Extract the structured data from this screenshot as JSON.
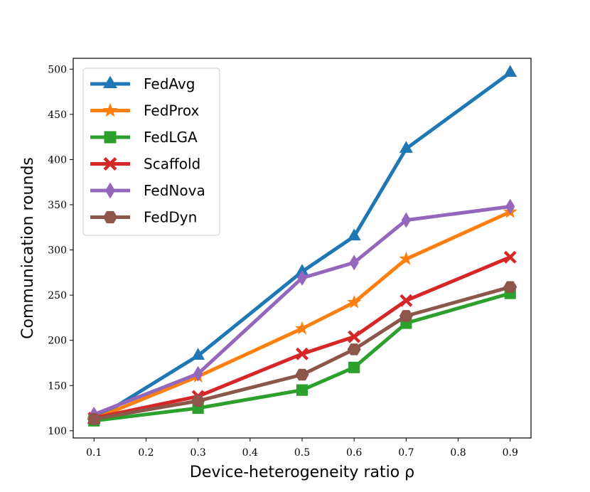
{
  "chart_data": {
    "type": "line",
    "title": "",
    "xlabel": "Device-heterogeneity ratio ρ",
    "ylabel": "Communication rounds",
    "x": [
      0.1,
      0.3,
      0.5,
      0.6,
      0.7,
      0.9
    ],
    "xlim": [
      0.06,
      0.94
    ],
    "ylim": [
      92,
      512
    ],
    "xticks": [
      0.1,
      0.2,
      0.3,
      0.4,
      0.5,
      0.6,
      0.7,
      0.8,
      0.9
    ],
    "xtick_labels": [
      "0.1",
      "0.2",
      "0.3",
      "0.4",
      "0.5",
      "0.6",
      "0.7",
      "0.8",
      "0.9"
    ],
    "yticks": [
      100,
      150,
      200,
      250,
      300,
      350,
      400,
      450,
      500
    ],
    "ytick_labels": [
      "100",
      "150",
      "200",
      "250",
      "300",
      "350",
      "400",
      "450",
      "500"
    ],
    "grid": false,
    "legend_position": "upper-left",
    "series": [
      {
        "name": "FedAvg",
        "color": "#1f77b4",
        "marker": "triangle",
        "values": [
          112,
          183,
          276,
          315,
          412,
          496
        ]
      },
      {
        "name": "FedProx",
        "color": "#ff7f0e",
        "marker": "star",
        "values": [
          113,
          160,
          213,
          242,
          290,
          342
        ]
      },
      {
        "name": "FedLGA",
        "color": "#2ca02c",
        "marker": "square",
        "values": [
          111,
          125,
          145,
          170,
          219,
          252
        ]
      },
      {
        "name": "Scaffold",
        "color": "#d62728",
        "marker": "x",
        "values": [
          114,
          138,
          185,
          204,
          244,
          292
        ]
      },
      {
        "name": "FedNova",
        "color": "#9467bd",
        "marker": "diamond",
        "values": [
          118,
          163,
          269,
          286,
          333,
          348
        ]
      },
      {
        "name": "FedDyn",
        "color": "#8c564b",
        "marker": "hexagon",
        "values": [
          113,
          133,
          162,
          190,
          227,
          259
        ]
      }
    ]
  }
}
